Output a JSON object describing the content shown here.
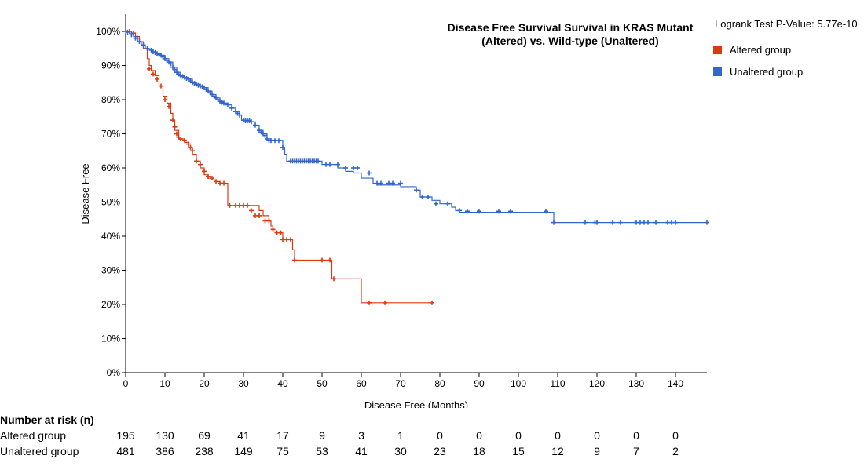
{
  "chart_data": {
    "type": "line",
    "title": "Disease Free Survival Survival in KRAS Mutant (Altered) vs. Wild-type (Unaltered)",
    "xlabel": "Disease Free (Months)",
    "ylabel": "Disease Free",
    "xlim": [
      0,
      148
    ],
    "ylim": [
      0,
      100
    ],
    "x_ticks": [
      0,
      10,
      20,
      30,
      40,
      50,
      60,
      70,
      80,
      90,
      100,
      110,
      120,
      130,
      140
    ],
    "y_ticks": [
      0,
      10,
      20,
      30,
      40,
      50,
      60,
      70,
      80,
      90,
      100
    ],
    "y_tick_suffix": "%",
    "pvalue_text": "Logrank Test P-Value: 5.77e-10",
    "legend_placement": "top-right",
    "series": [
      {
        "name": "Altered group",
        "color": "#dc3912",
        "steps": [
          [
            0,
            100
          ],
          [
            0.5,
            100
          ],
          [
            1.5,
            99.5
          ],
          [
            2.5,
            98.5
          ],
          [
            3.5,
            97
          ],
          [
            4.5,
            95
          ],
          [
            5.5,
            92
          ],
          [
            6,
            90
          ],
          [
            6.5,
            88.5
          ],
          [
            7.5,
            87
          ],
          [
            8.5,
            84
          ],
          [
            9.5,
            81
          ],
          [
            10.5,
            79
          ],
          [
            11.5,
            76
          ],
          [
            12,
            74
          ],
          [
            12.5,
            71
          ],
          [
            13.5,
            68.5
          ],
          [
            15,
            67.5
          ],
          [
            16,
            66
          ],
          [
            17,
            64
          ],
          [
            18,
            62
          ],
          [
            19,
            60
          ],
          [
            20,
            58
          ],
          [
            21,
            57
          ],
          [
            22,
            56.5
          ],
          [
            23,
            56
          ],
          [
            24,
            55.5
          ],
          [
            26,
            49
          ],
          [
            34,
            47.5
          ],
          [
            35,
            46
          ],
          [
            36.5,
            44.5
          ],
          [
            37,
            43
          ],
          [
            37.5,
            41.5
          ],
          [
            38.5,
            41
          ],
          [
            40,
            39
          ],
          [
            42.5,
            36
          ],
          [
            43,
            33
          ],
          [
            52.5,
            27.5
          ],
          [
            60,
            20.5
          ],
          [
            78,
            20.5
          ]
        ],
        "censors": [
          [
            1,
            100
          ],
          [
            2,
            99.5
          ],
          [
            3,
            98
          ],
          [
            6,
            89
          ],
          [
            7,
            87.5
          ],
          [
            8,
            86
          ],
          [
            9,
            84
          ],
          [
            10,
            80
          ],
          [
            11,
            78
          ],
          [
            12,
            74
          ],
          [
            12.5,
            72
          ],
          [
            13,
            70
          ],
          [
            13.5,
            69
          ],
          [
            14,
            68.5
          ],
          [
            15,
            68
          ],
          [
            16,
            67
          ],
          [
            16.5,
            66
          ],
          [
            17,
            65
          ],
          [
            18,
            62
          ],
          [
            19,
            61
          ],
          [
            20,
            59
          ],
          [
            21,
            57.5
          ],
          [
            22,
            57
          ],
          [
            23,
            56
          ],
          [
            24,
            55.5
          ],
          [
            25,
            55.5
          ],
          [
            26.5,
            49
          ],
          [
            28,
            49
          ],
          [
            29,
            49
          ],
          [
            30,
            49
          ],
          [
            31,
            49
          ],
          [
            32,
            47.5
          ],
          [
            33,
            46
          ],
          [
            34,
            46
          ],
          [
            35.5,
            44.5
          ],
          [
            36.5,
            44.5
          ],
          [
            37.5,
            42
          ],
          [
            38.5,
            41
          ],
          [
            39.5,
            41
          ],
          [
            40,
            39
          ],
          [
            41,
            39
          ],
          [
            42,
            39
          ],
          [
            43,
            33
          ],
          [
            50,
            33
          ],
          [
            52,
            33
          ],
          [
            53,
            27.5
          ],
          [
            62,
            20.5
          ],
          [
            66,
            20.5
          ],
          [
            78,
            20.5
          ]
        ]
      },
      {
        "name": "Unaltered group",
        "color": "#3366cc",
        "steps": [
          [
            0,
            100
          ],
          [
            1,
            99.5
          ],
          [
            2,
            98.5
          ],
          [
            3,
            97
          ],
          [
            4,
            96
          ],
          [
            5,
            95
          ],
          [
            6,
            94.5
          ],
          [
            7,
            94
          ],
          [
            8,
            93.5
          ],
          [
            9,
            93
          ],
          [
            10,
            92
          ],
          [
            11,
            91
          ],
          [
            12,
            89.5
          ],
          [
            13,
            88
          ],
          [
            14,
            87
          ],
          [
            15,
            86.5
          ],
          [
            16,
            86
          ],
          [
            17,
            85
          ],
          [
            18,
            84.5
          ],
          [
            19,
            84
          ],
          [
            20,
            83.5
          ],
          [
            21,
            82.5
          ],
          [
            22,
            81.5
          ],
          [
            23,
            80.5
          ],
          [
            24,
            79.5
          ],
          [
            25,
            79
          ],
          [
            26,
            78.5
          ],
          [
            27,
            77.5
          ],
          [
            28,
            76.5
          ],
          [
            29,
            75.5
          ],
          [
            29.5,
            74
          ],
          [
            32,
            73.5
          ],
          [
            33,
            72.5
          ],
          [
            34,
            71
          ],
          [
            35,
            70
          ],
          [
            36,
            68.5
          ],
          [
            37,
            68
          ],
          [
            40,
            66
          ],
          [
            40.5,
            64
          ],
          [
            41,
            62
          ],
          [
            50,
            61
          ],
          [
            54,
            60
          ],
          [
            56,
            59
          ],
          [
            58,
            58.5
          ],
          [
            60,
            57
          ],
          [
            63,
            55.5
          ],
          [
            64,
            55
          ],
          [
            70,
            54.5
          ],
          [
            74,
            53.5
          ],
          [
            75,
            51.5
          ],
          [
            78,
            50.5
          ],
          [
            80,
            49.5
          ],
          [
            83,
            48.5
          ],
          [
            84,
            47.5
          ],
          [
            85,
            47
          ],
          [
            109,
            44
          ],
          [
            148,
            44
          ]
        ],
        "censors": [
          [
            0.5,
            99.8
          ],
          [
            1.5,
            99
          ],
          [
            2.5,
            98
          ],
          [
            3.5,
            97
          ],
          [
            4.5,
            96
          ],
          [
            5.5,
            95
          ],
          [
            6.5,
            94.5
          ],
          [
            7,
            94
          ],
          [
            7.5,
            93.8
          ],
          [
            8,
            93.5
          ],
          [
            8.5,
            93.2
          ],
          [
            9,
            93
          ],
          [
            9.5,
            92.5
          ],
          [
            10,
            92
          ],
          [
            10.5,
            91.5
          ],
          [
            11,
            91
          ],
          [
            11.5,
            90.5
          ],
          [
            12,
            89.5
          ],
          [
            12.5,
            88.8
          ],
          [
            13,
            88
          ],
          [
            13.5,
            87.5
          ],
          [
            14,
            87
          ],
          [
            14.5,
            86.8
          ],
          [
            15,
            86.5
          ],
          [
            15.5,
            86.2
          ],
          [
            16,
            86
          ],
          [
            16.5,
            85.5
          ],
          [
            17,
            85
          ],
          [
            17.5,
            84.8
          ],
          [
            18,
            84.5
          ],
          [
            18.5,
            84.2
          ],
          [
            19,
            84
          ],
          [
            19.5,
            83.8
          ],
          [
            20,
            83.5
          ],
          [
            20.5,
            83
          ],
          [
            21,
            82.5
          ],
          [
            21.5,
            82
          ],
          [
            22,
            81.5
          ],
          [
            22.5,
            81
          ],
          [
            23,
            80.5
          ],
          [
            23.5,
            80
          ],
          [
            24,
            79.5
          ],
          [
            24.5,
            79.2
          ],
          [
            25,
            79
          ],
          [
            26,
            78.5
          ],
          [
            27,
            77.5
          ],
          [
            28,
            76.5
          ],
          [
            28.5,
            76
          ],
          [
            29,
            75.5
          ],
          [
            30,
            74
          ],
          [
            30.5,
            73.8
          ],
          [
            31,
            73.8
          ],
          [
            31.5,
            73.8
          ],
          [
            32,
            73.5
          ],
          [
            33,
            72.5
          ],
          [
            34,
            71
          ],
          [
            34.5,
            70.5
          ],
          [
            35,
            70
          ],
          [
            35.5,
            69.5
          ],
          [
            36,
            68.5
          ],
          [
            36.5,
            68
          ],
          [
            37,
            68
          ],
          [
            38,
            68
          ],
          [
            39,
            68
          ],
          [
            40,
            66
          ],
          [
            42,
            62
          ],
          [
            42.5,
            62
          ],
          [
            43,
            62
          ],
          [
            43.5,
            62
          ],
          [
            44,
            62
          ],
          [
            44.5,
            62
          ],
          [
            45,
            62
          ],
          [
            45.5,
            62
          ],
          [
            46,
            62
          ],
          [
            46.5,
            62
          ],
          [
            47,
            62
          ],
          [
            47.5,
            62
          ],
          [
            48,
            62
          ],
          [
            48.5,
            62
          ],
          [
            49,
            62
          ],
          [
            51,
            61
          ],
          [
            52,
            61
          ],
          [
            54,
            61
          ],
          [
            56,
            60
          ],
          [
            58,
            60
          ],
          [
            59,
            60
          ],
          [
            62,
            58.5
          ],
          [
            64,
            55.5
          ],
          [
            65,
            55.5
          ],
          [
            67,
            55.5
          ],
          [
            68,
            55.5
          ],
          [
            70,
            55.5
          ],
          [
            74,
            53.5
          ],
          [
            75.5,
            51.5
          ],
          [
            77,
            51.5
          ],
          [
            79,
            49.5
          ],
          [
            82,
            49.5
          ],
          [
            85,
            47.5
          ],
          [
            87,
            47.3
          ],
          [
            90,
            47.3
          ],
          [
            95,
            47.3
          ],
          [
            98,
            47.3
          ],
          [
            107,
            47.3
          ],
          [
            109,
            44
          ],
          [
            117,
            44
          ],
          [
            119.5,
            44
          ],
          [
            120,
            44
          ],
          [
            124,
            44
          ],
          [
            126,
            44
          ],
          [
            130,
            44
          ],
          [
            131,
            44
          ],
          [
            132,
            44
          ],
          [
            133,
            44
          ],
          [
            135,
            44
          ],
          [
            138,
            44
          ],
          [
            139,
            44
          ],
          [
            140,
            44
          ],
          [
            148,
            44
          ]
        ]
      }
    ]
  },
  "risk_table": {
    "title": "Number at risk (n)",
    "rows": [
      {
        "label": "Altered group",
        "values": [
          "195",
          "130",
          "69",
          "41",
          "17",
          "9",
          "3",
          "1",
          "0",
          "0",
          "0",
          "0",
          "0",
          "0",
          "0"
        ]
      },
      {
        "label": "Unaltered group",
        "values": [
          "481",
          "386",
          "238",
          "149",
          "75",
          "53",
          "41",
          "30",
          "23",
          "18",
          "15",
          "12",
          "9",
          "7",
          "2"
        ]
      }
    ]
  }
}
